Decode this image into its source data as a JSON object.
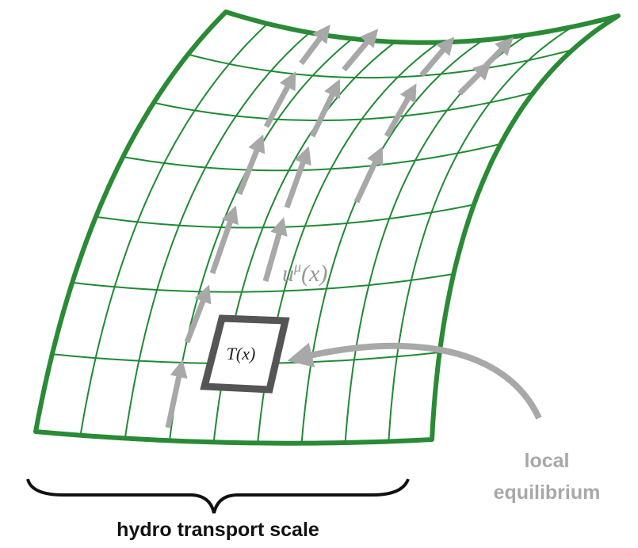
{
  "labels": {
    "velocity": {
      "base": "u",
      "sup": "μ",
      "arg": "(x)"
    },
    "temperature": "T(x)",
    "callout": [
      "local",
      "equilibrium"
    ],
    "brace": "hydro transport scale"
  }
}
